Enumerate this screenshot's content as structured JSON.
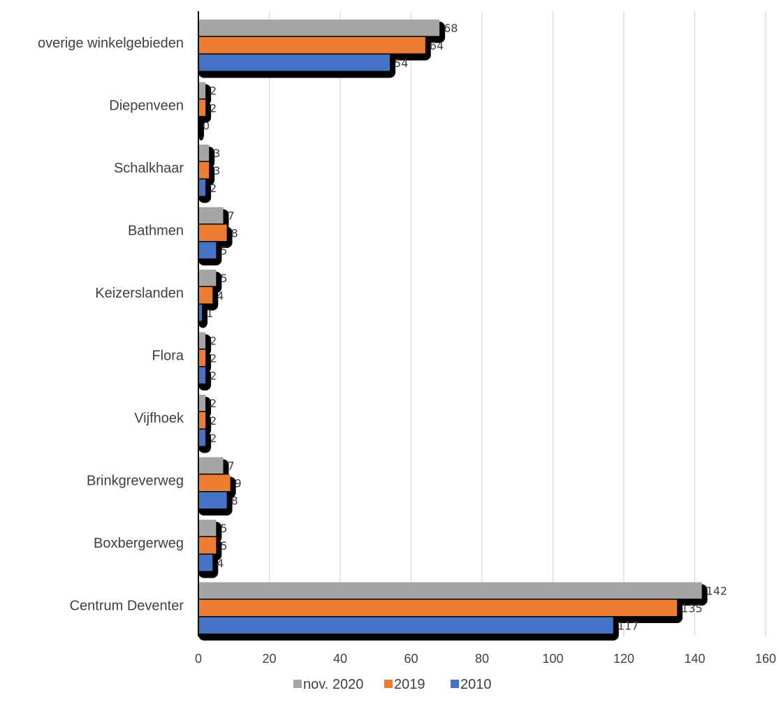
{
  "chart_data": {
    "type": "bar",
    "orientation": "horizontal",
    "categories": [
      "overige winkelgebieden",
      "Diepenveen",
      "Schalkhaar",
      "Bathmen",
      "Keizerslanden",
      "Flora",
      "Vijfhoek",
      "Brinkgreverweg",
      "Boxbergerweg",
      "Centrum Deventer"
    ],
    "series": [
      {
        "name": "nov. 2020",
        "color": "#a5a5a5",
        "values": [
          68,
          2,
          3,
          7,
          5,
          2,
          2,
          7,
          5,
          142
        ]
      },
      {
        "name": "2019",
        "color": "#ed7d31",
        "values": [
          64,
          2,
          3,
          8,
          4,
          2,
          2,
          9,
          5,
          135
        ]
      },
      {
        "name": "2010",
        "color": "#4472c4",
        "values": [
          54,
          0,
          2,
          5,
          1,
          2,
          2,
          8,
          4,
          117
        ]
      }
    ],
    "xlim": [
      0,
      160
    ],
    "xticks": [
      0,
      20,
      40,
      60,
      80,
      100,
      120,
      140,
      160
    ],
    "grid": true,
    "legend_position": "bottom",
    "data_labels": true
  }
}
